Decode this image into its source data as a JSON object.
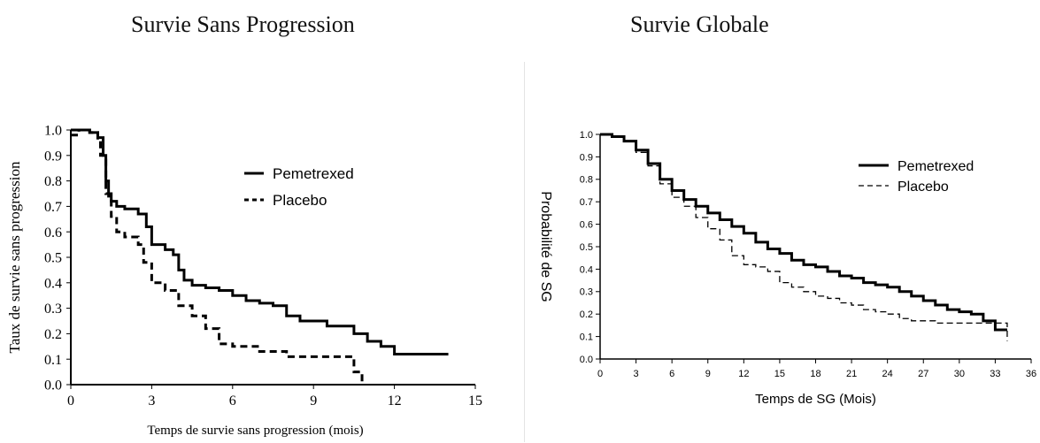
{
  "chart_data": [
    {
      "type": "line",
      "title": "Survie Sans Progression",
      "xlabel": "Temps de survie sans progression (mois)",
      "ylabel": "Taux de survie sans progression",
      "xlim": [
        0,
        15
      ],
      "ylim": [
        0.0,
        1.0
      ],
      "xticks": [
        "0",
        "3",
        "6",
        "9",
        "12",
        "15"
      ],
      "yticks": [
        "0.0",
        "0.1",
        "0.2",
        "0.3",
        "0.4",
        "0.5",
        "0.6",
        "0.7",
        "0.8",
        "0.9",
        "1.0"
      ],
      "legend_position": "top-right",
      "series": [
        {
          "name": "Pemetrexed",
          "style": "solid",
          "color": "#000000",
          "x": [
            0,
            0.4,
            0.7,
            1.0,
            1.2,
            1.3,
            1.4,
            1.5,
            1.7,
            2.0,
            2.5,
            2.8,
            3.0,
            3.5,
            3.8,
            4.0,
            4.2,
            4.5,
            5.0,
            5.5,
            6.0,
            6.5,
            7.0,
            7.5,
            8.0,
            8.5,
            9.0,
            9.5,
            10.0,
            10.5,
            11.0,
            11.5,
            12.0,
            13.0,
            14.0
          ],
          "y": [
            1.0,
            1.0,
            0.99,
            0.97,
            0.9,
            0.8,
            0.74,
            0.72,
            0.7,
            0.69,
            0.67,
            0.62,
            0.55,
            0.53,
            0.51,
            0.45,
            0.41,
            0.39,
            0.38,
            0.37,
            0.35,
            0.33,
            0.32,
            0.31,
            0.27,
            0.25,
            0.25,
            0.23,
            0.23,
            0.2,
            0.17,
            0.15,
            0.12,
            0.12,
            0.12
          ]
        },
        {
          "name": "Placebo",
          "style": "dashed",
          "color": "#000000",
          "x": [
            0,
            0.3,
            0.7,
            1.0,
            1.1,
            1.3,
            1.5,
            1.7,
            2.0,
            2.5,
            2.7,
            3.0,
            3.5,
            4.0,
            4.5,
            5.0,
            5.5,
            6.0,
            7.0,
            8.0,
            8.5,
            9.0,
            10.0,
            10.5,
            10.8
          ],
          "y": [
            0.98,
            1.0,
            0.99,
            0.96,
            0.9,
            0.75,
            0.66,
            0.6,
            0.58,
            0.55,
            0.48,
            0.4,
            0.37,
            0.31,
            0.27,
            0.22,
            0.16,
            0.15,
            0.13,
            0.11,
            0.11,
            0.11,
            0.11,
            0.05,
            0.0
          ]
        }
      ],
      "legend": [
        "Pemetrexed",
        "Placebo"
      ]
    },
    {
      "type": "line",
      "title": "Survie Globale",
      "xlabel": "Temps de SG (Mois)",
      "ylabel": "Probabilité de SG",
      "xlim": [
        0,
        36
      ],
      "ylim": [
        0.0,
        1.0
      ],
      "xticks": [
        "0",
        "3",
        "6",
        "9",
        "12",
        "15",
        "18",
        "21",
        "24",
        "27",
        "30",
        "33",
        "36"
      ],
      "yticks": [
        "0.0",
        "0.1",
        "0.2",
        "0.3",
        "0.4",
        "0.5",
        "0.6",
        "0.7",
        "0.8",
        "0.9",
        "1.0"
      ],
      "legend_position": "top-right",
      "series": [
        {
          "name": "Pemetrexed",
          "style": "solid",
          "color": "#000000",
          "x": [
            0,
            1,
            2,
            3,
            4,
            5,
            6,
            7,
            8,
            9,
            10,
            11,
            12,
            13,
            14,
            15,
            16,
            17,
            18,
            19,
            20,
            21,
            22,
            23,
            24,
            25,
            26,
            27,
            28,
            29,
            30,
            31,
            32,
            33,
            34
          ],
          "y": [
            1.0,
            0.99,
            0.97,
            0.93,
            0.87,
            0.8,
            0.75,
            0.71,
            0.68,
            0.65,
            0.62,
            0.59,
            0.56,
            0.52,
            0.49,
            0.47,
            0.44,
            0.42,
            0.41,
            0.39,
            0.37,
            0.36,
            0.34,
            0.33,
            0.32,
            0.3,
            0.28,
            0.26,
            0.24,
            0.22,
            0.21,
            0.2,
            0.17,
            0.13,
            0.13
          ]
        },
        {
          "name": "Placebo",
          "style": "dashed",
          "color": "#000000",
          "x": [
            0,
            1,
            2,
            3,
            4,
            5,
            6,
            7,
            8,
            9,
            10,
            11,
            12,
            13,
            14,
            15,
            16,
            17,
            18,
            19,
            20,
            21,
            22,
            23,
            24,
            25,
            26,
            27,
            28,
            29,
            30,
            31,
            32,
            33,
            34
          ],
          "y": [
            1.0,
            0.99,
            0.97,
            0.92,
            0.86,
            0.78,
            0.72,
            0.68,
            0.63,
            0.58,
            0.53,
            0.46,
            0.42,
            0.41,
            0.39,
            0.34,
            0.32,
            0.3,
            0.28,
            0.27,
            0.25,
            0.24,
            0.22,
            0.21,
            0.2,
            0.18,
            0.17,
            0.17,
            0.16,
            0.16,
            0.16,
            0.16,
            0.16,
            0.16,
            0.08
          ]
        }
      ],
      "legend": [
        "Pemetrexed",
        "Placebo"
      ]
    }
  ]
}
